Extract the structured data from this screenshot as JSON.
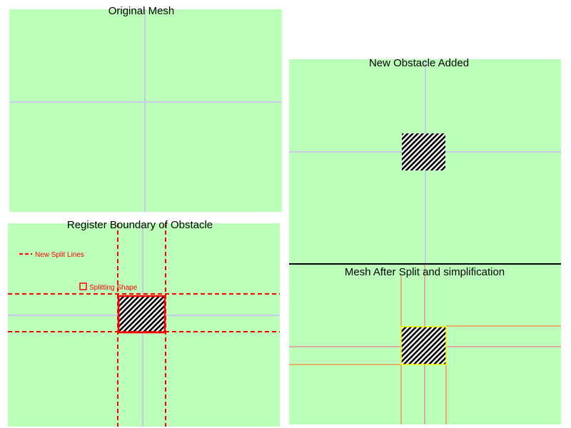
{
  "colors": {
    "mesh_fill": "#bbffbb",
    "mesh_line": "#c8c8e8",
    "split_line": "#ff0000",
    "simplified_line": "#e8b070",
    "obstacle_border": "#ffff00",
    "divider": "#000000"
  },
  "panels": {
    "original": {
      "title": "Original Mesh"
    },
    "obstacle": {
      "title": "New Obstacle Added"
    },
    "register": {
      "title": "Register Boundary of Obstacle",
      "legend": {
        "split_lines": "New Split Lines",
        "splitting_shape": "Splitting Shape"
      }
    },
    "result": {
      "title": "Mesh After Split and simplification"
    }
  },
  "icons": {
    "obstacle": "hatched-obstacle-icon",
    "legend_shape": "square-outline-icon"
  }
}
